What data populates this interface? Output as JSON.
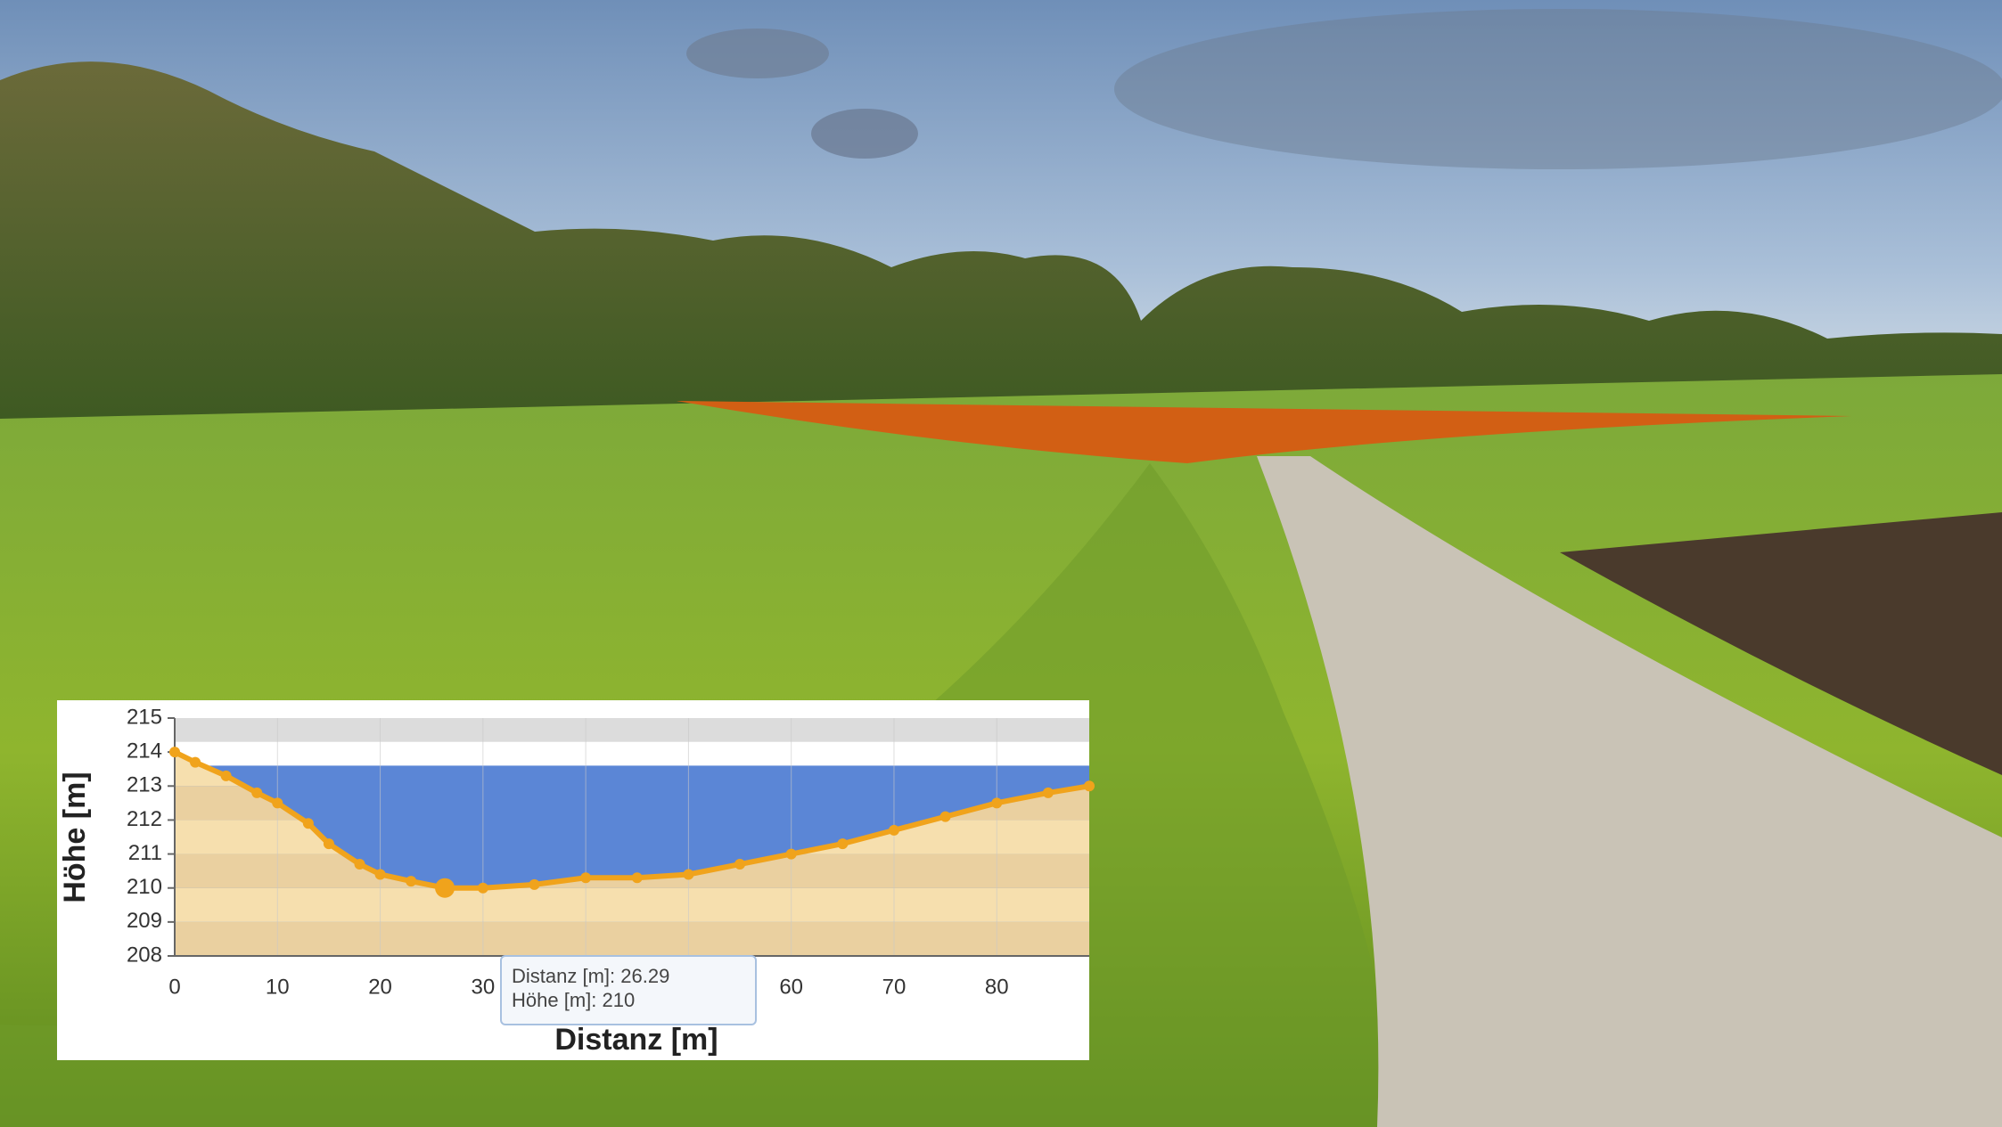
{
  "chart_data": {
    "type": "area-profile",
    "x_label": "Distanz [m]",
    "y_label": "Höhe [m]",
    "x": [
      0,
      2,
      5,
      8,
      10,
      13,
      15,
      18,
      20,
      23,
      26.29,
      30,
      35,
      40,
      45,
      50,
      55,
      60,
      65,
      70,
      75,
      80,
      85,
      89
    ],
    "values": [
      214.0,
      213.7,
      213.3,
      212.8,
      212.5,
      211.9,
      211.3,
      210.7,
      210.4,
      210.2,
      210.0,
      210.0,
      210.1,
      210.3,
      210.3,
      210.4,
      210.7,
      211.0,
      211.3,
      211.7,
      212.1,
      212.5,
      212.8,
      213.0
    ],
    "line_color": "#f0a31c",
    "water_color": "#5b86d6",
    "water_level": 213.6,
    "upper_level": 214.3,
    "xlim": [
      0,
      89
    ],
    "ylim": [
      208,
      215
    ],
    "xticks": [
      0,
      10,
      20,
      30,
      40,
      50,
      60,
      70,
      80
    ],
    "yticks": [
      208,
      209,
      210,
      211,
      212,
      213,
      214,
      215
    ],
    "grid": true,
    "tooltip": {
      "x": 26.29,
      "y": 210,
      "lines": [
        "Distanz [m]: 26.29",
        "Höhe [m]: 210"
      ]
    }
  }
}
